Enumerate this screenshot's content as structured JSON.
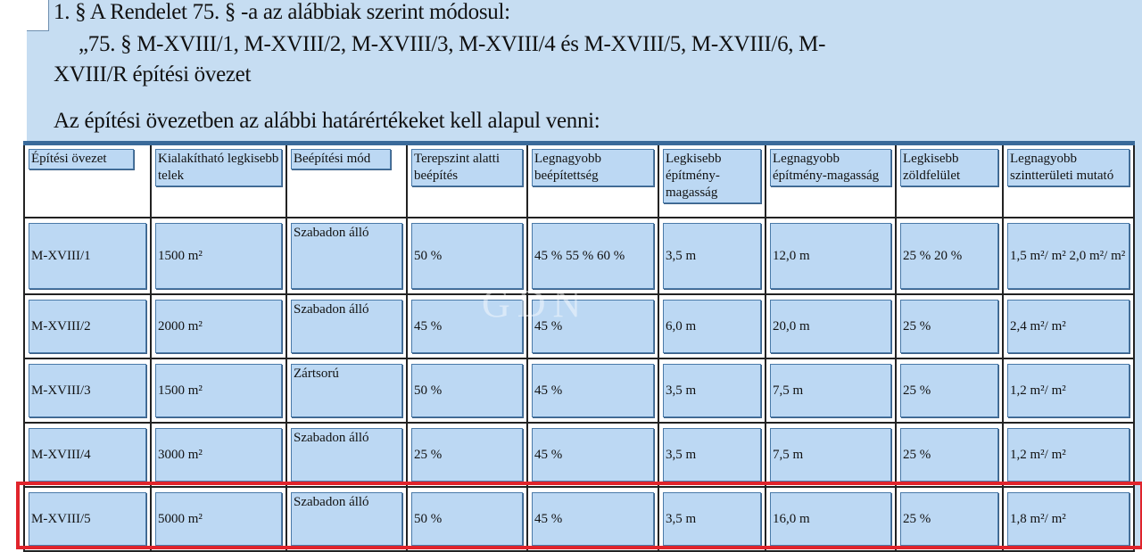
{
  "document": {
    "heading": "1. § A Rendelet 75. § -a az alábbiak szerint módosul:",
    "quote_line1": "„75. § M-XVIII/1, M-XVIII/2, M-XVIII/3, M-XVIII/4 és M-XVIII/5, M-XVIII/6, M-",
    "quote_line2": "XVIII/R építési övezet",
    "intro": "Az építési övezetben az alábbi határértékeket kell alapul venni:",
    "watermark": "GDN"
  },
  "table": {
    "headers": [
      "Építési övezet",
      "Kialakítható legkisebb telek",
      "Beépítési mód",
      "Terepszint alatti beépítés",
      "Legnagyobb beépítettség",
      "Legkisebb építmény-magasság",
      "Legnagyobb építmény-magasság",
      "Legkisebb zöldfelület",
      "Legnagyobb szintterületi mutató"
    ],
    "rows": [
      [
        "M-XVIII/1",
        "1500 m²",
        "Szabadon álló",
        "50 %",
        "45 % 55 % 60 %",
        "3,5 m",
        "12,0 m",
        "25 % 20 %",
        "1,5 m²/ m² 2,0 m²/ m²"
      ],
      [
        "M-XVIII/2",
        "2000 m²",
        "Szabadon álló",
        "45 %",
        "45 %",
        "6,0 m",
        "20,0 m",
        "25 %",
        "2,4 m²/ m²"
      ],
      [
        "M-XVIII/3",
        "1500 m²",
        "Zártsorú",
        "50 %",
        "45 %",
        "3,5 m",
        "7,5 m",
        "25 %",
        "1,2 m²/ m²"
      ],
      [
        "M-XVIII/4",
        "3000 m²",
        "Szabadon álló",
        "25 %",
        "45 %",
        "3,5 m",
        "7,5 m",
        "25 %",
        "1,2 m²/ m²"
      ],
      [
        "M-XVIII/5",
        "5000 m²",
        "Szabadon álló",
        "50 %",
        "45 %",
        "3,5 m",
        "16,0 m",
        "25 %",
        "1,8 m²/ m²"
      ]
    ],
    "highlighted_row": "M-XVIII/5",
    "highlight_color": "#e0242c"
  }
}
